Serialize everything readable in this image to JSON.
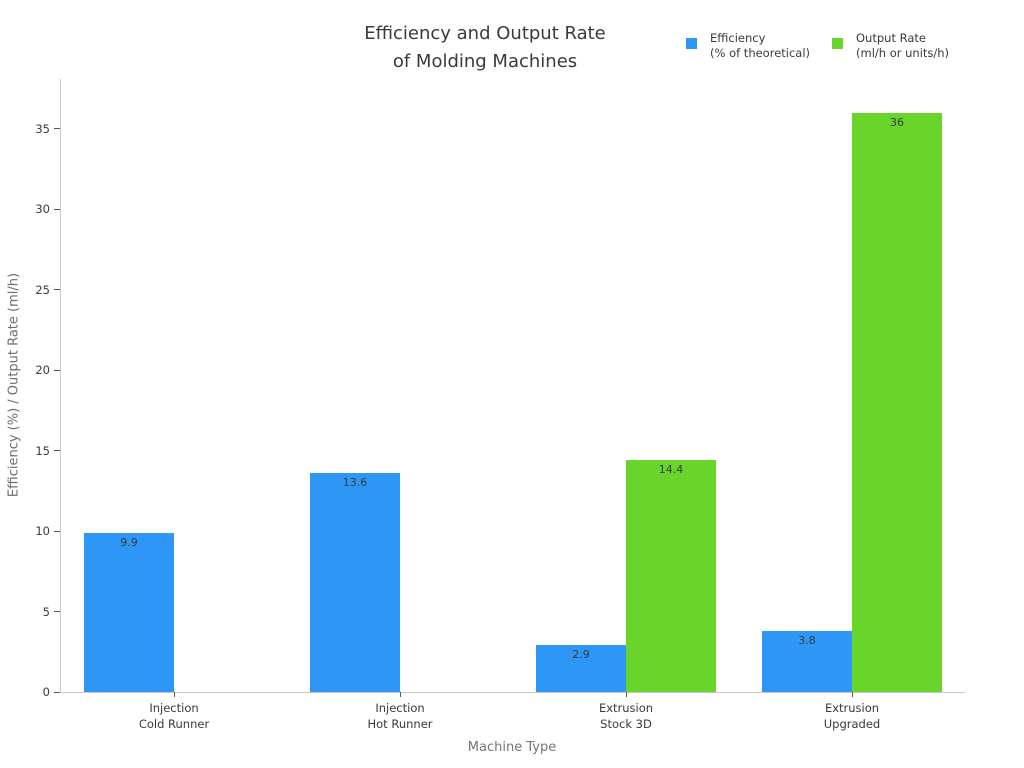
{
  "chart_data": {
    "type": "bar",
    "title": "Efficiency and Output Rate\nof Molding Machines",
    "xlabel": "Machine Type",
    "ylabel": "Efficiency (%) / Output Rate (ml/h)",
    "categories": [
      "Injection\nCold Runner",
      "Injection\nHot Runner",
      "Extrusion\nStock 3D",
      "Extrusion\nUpgraded"
    ],
    "series": [
      {
        "key": "efficiency",
        "name": "Efficiency\n(% of theoretical)",
        "color": "#2e96f5",
        "values": [
          9.9,
          13.6,
          2.9,
          3.8
        ]
      },
      {
        "key": "output-rate",
        "name": "Output Rate\n(ml/h or units/h)",
        "color": "#69d52b",
        "values": [
          null,
          null,
          14.4,
          36
        ]
      }
    ],
    "yticks": [
      0,
      5,
      10,
      15,
      20,
      25,
      30,
      35
    ],
    "ylim": [
      0,
      38.1
    ],
    "grid": false,
    "legend_position": "top-right",
    "value_labels": "inside-top",
    "spine_color": "#c9c9c9"
  }
}
